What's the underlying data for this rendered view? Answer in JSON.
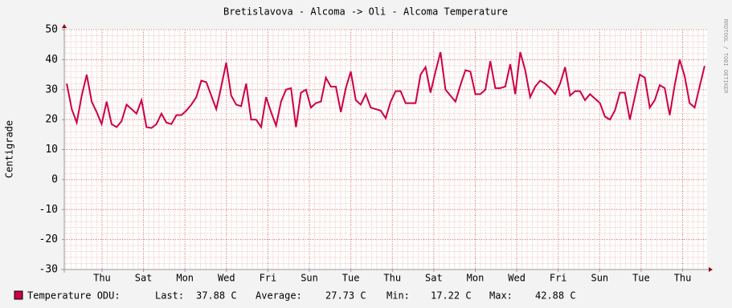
{
  "chart_data": {
    "type": "line",
    "title": "Bretislavova - Alcoma -> Oli - Alcoma Temperature",
    "ylabel": "Centigrade",
    "watermark": "RRDTOOL / TOBI OETIKER",
    "xlim": [
      0,
      31
    ],
    "xticks": [
      {
        "value": 1.82,
        "label": "Thu"
      },
      {
        "value": 3.82,
        "label": "Sat"
      },
      {
        "value": 5.82,
        "label": "Mon"
      },
      {
        "value": 7.82,
        "label": "Wed"
      },
      {
        "value": 9.82,
        "label": "Fri"
      },
      {
        "value": 11.82,
        "label": "Sun"
      },
      {
        "value": 13.82,
        "label": "Tue"
      },
      {
        "value": 15.82,
        "label": "Thu"
      },
      {
        "value": 17.82,
        "label": "Sat"
      },
      {
        "value": 19.82,
        "label": "Mon"
      },
      {
        "value": 21.82,
        "label": "Wed"
      },
      {
        "value": 23.82,
        "label": "Fri"
      },
      {
        "value": 25.82,
        "label": "Sun"
      },
      {
        "value": 27.82,
        "label": "Tue"
      },
      {
        "value": 29.82,
        "label": "Thu"
      }
    ],
    "ylim": [
      -30,
      50
    ],
    "yticks": [
      -30,
      -20,
      -10,
      0,
      10,
      20,
      30,
      40,
      50
    ],
    "grid": true,
    "series": [
      {
        "name": "Temperature ODU:",
        "color": "#cc0044",
        "values": [
          32,
          23.5,
          19,
          28,
          35,
          26,
          22.5,
          18.5,
          26,
          18.5,
          17.5,
          19.5,
          25,
          23.5,
          22,
          26.5,
          17.5,
          17.2,
          18.5,
          22,
          19,
          18.5,
          21.5,
          21.5,
          23,
          25,
          27.5,
          33,
          32.5,
          28,
          23.5,
          31,
          39,
          28,
          25,
          24.5,
          32,
          20,
          20,
          17.5,
          27.5,
          22.5,
          18,
          26,
          30,
          30.5,
          17.5,
          29,
          30,
          24,
          25.5,
          26,
          34,
          31,
          31,
          22.5,
          30.5,
          36,
          26.5,
          25,
          28.5,
          24,
          23.5,
          23,
          20.5,
          26,
          29.5,
          29.5,
          25.5,
          25.5,
          25.5,
          35,
          37.5,
          29,
          36,
          42.5,
          30,
          28,
          26,
          31.5,
          36.5,
          36,
          28.5,
          28.5,
          30,
          39.5,
          30.5,
          30.5,
          31,
          38.5,
          28.5,
          42.5,
          36.5,
          27.5,
          31,
          33,
          32,
          30.5,
          28.5,
          32,
          37.5,
          28,
          29.5,
          29.5,
          26.5,
          28.5,
          27,
          25.5,
          21,
          20,
          23,
          29,
          29,
          20,
          27.5,
          35,
          34,
          24,
          26.5,
          31.5,
          30.5,
          21.5,
          31.5,
          40,
          34.5,
          25.5,
          24,
          31,
          37.88
        ]
      }
    ],
    "stats": [
      {
        "label": "Last:",
        "value": "37.88 C"
      },
      {
        "label": "Average:",
        "value": "27.73 C"
      },
      {
        "label": "Min:",
        "value": "17.22 C"
      },
      {
        "label": "Max:",
        "value": "42.88 C"
      }
    ]
  }
}
